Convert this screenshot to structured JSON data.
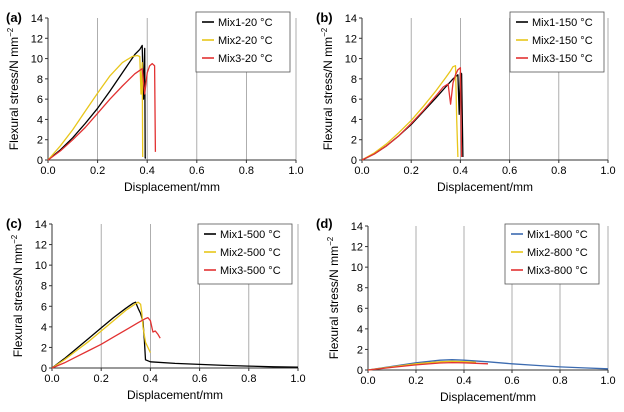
{
  "figure": {
    "colors": {
      "black": "#000000",
      "yellow": "#e8c61a",
      "red": "#e23232",
      "blue": "#3c6bb0",
      "grid": "#999999"
    }
  },
  "chart_data": [
    {
      "type": "line",
      "panel_label": "(a)",
      "xlabel": "Displacement/mm",
      "ylabel": "Flexural stress/N mm",
      "ylabel_sup": "−2",
      "xlim": [
        0,
        1.0
      ],
      "ylim": [
        0,
        14
      ],
      "xticks": [
        "0.0",
        "0.2",
        "0.4",
        "0.6",
        "0.8",
        "1.0"
      ],
      "yticks": [
        "0",
        "2",
        "4",
        "6",
        "8",
        "10",
        "12",
        "14"
      ],
      "grid": "vertical",
      "legend": "top-right",
      "series": [
        {
          "name": "Mix1-20 °C",
          "color": "#000000",
          "x": [
            0,
            0.05,
            0.1,
            0.15,
            0.2,
            0.25,
            0.3,
            0.35,
            0.37,
            0.38,
            0.385,
            0.39,
            0.392,
            0.395
          ],
          "y": [
            0,
            1.0,
            2.2,
            3.6,
            5.1,
            6.8,
            8.6,
            10.4,
            10.9,
            11.3,
            6.0,
            11.0,
            0.2,
            0.2
          ]
        },
        {
          "name": "Mix2-20 °C",
          "color": "#e8c61a",
          "x": [
            0,
            0.05,
            0.1,
            0.15,
            0.2,
            0.25,
            0.3,
            0.34,
            0.36,
            0.37,
            0.375,
            0.38,
            0.382
          ],
          "y": [
            0,
            1.4,
            3.0,
            4.8,
            6.6,
            8.3,
            9.6,
            10.2,
            10.3,
            10.2,
            6.5,
            9.6,
            0.3
          ]
        },
        {
          "name": "Mix3-20 °C",
          "color": "#e23232",
          "x": [
            0,
            0.05,
            0.1,
            0.15,
            0.2,
            0.25,
            0.3,
            0.35,
            0.38,
            0.39,
            0.4,
            0.41,
            0.42,
            0.43,
            0.433
          ],
          "y": [
            0,
            0.9,
            2.0,
            3.2,
            4.6,
            6.0,
            7.3,
            8.5,
            9.0,
            6.5,
            8.6,
            9.3,
            9.5,
            9.3,
            0.8
          ]
        }
      ]
    },
    {
      "type": "line",
      "panel_label": "(b)",
      "xlabel": "Displacement/mm",
      "ylabel": "Flexural stress/N mm",
      "ylabel_sup": "−2",
      "xlim": [
        0,
        1.0
      ],
      "ylim": [
        0,
        14
      ],
      "xticks": [
        "0.0",
        "0.2",
        "0.4",
        "0.6",
        "0.8",
        "1.0"
      ],
      "yticks": [
        "0",
        "2",
        "4",
        "6",
        "8",
        "10",
        "12",
        "14"
      ],
      "grid": "vertical",
      "legend": "top-right",
      "series": [
        {
          "name": "Mix1-150 °C",
          "color": "#000000",
          "x": [
            0,
            0.05,
            0.1,
            0.15,
            0.2,
            0.25,
            0.3,
            0.34,
            0.37,
            0.39,
            0.395,
            0.4,
            0.405,
            0.41
          ],
          "y": [
            0,
            0.6,
            1.4,
            2.4,
            3.5,
            4.8,
            6.1,
            7.2,
            8.0,
            8.4,
            4.5,
            8.6,
            8.5,
            0.3
          ]
        },
        {
          "name": "Mix2-150 °C",
          "color": "#e8c61a",
          "x": [
            0,
            0.05,
            0.1,
            0.15,
            0.2,
            0.25,
            0.3,
            0.34,
            0.36,
            0.37,
            0.38,
            0.385,
            0.39
          ],
          "y": [
            0,
            0.7,
            1.6,
            2.7,
            3.9,
            5.3,
            6.8,
            8.1,
            8.8,
            9.2,
            9.3,
            4.0,
            0.3
          ]
        },
        {
          "name": "Mix3-150 °C",
          "color": "#e23232",
          "x": [
            0,
            0.05,
            0.1,
            0.15,
            0.2,
            0.25,
            0.3,
            0.33,
            0.35,
            0.36,
            0.37,
            0.38,
            0.39,
            0.4,
            0.405
          ],
          "y": [
            0,
            0.6,
            1.4,
            2.4,
            3.6,
            4.9,
            6.3,
            7.2,
            7.5,
            5.5,
            7.6,
            8.4,
            8.9,
            9.1,
            0.3
          ]
        }
      ]
    },
    {
      "type": "line",
      "panel_label": "(c)",
      "xlabel": "Displacement/mm",
      "ylabel": "Flexural stress/N mm",
      "ylabel_sup": "−2",
      "xlim": [
        0,
        1.0
      ],
      "ylim": [
        0,
        14
      ],
      "xticks": [
        "0.0",
        "0.2",
        "0.4",
        "0.6",
        "0.8",
        "1.0"
      ],
      "yticks": [
        "0",
        "2",
        "4",
        "6",
        "8",
        "10",
        "12",
        "14"
      ],
      "grid": "vertical",
      "legend": "top-right",
      "series": [
        {
          "name": "Mix1-500 °C",
          "color": "#000000",
          "x": [
            0,
            0.05,
            0.1,
            0.15,
            0.2,
            0.25,
            0.3,
            0.33,
            0.34,
            0.35,
            0.36,
            0.37,
            0.375,
            0.38,
            0.4,
            0.5,
            0.6,
            0.7,
            0.8,
            0.9,
            1.0
          ],
          "y": [
            0,
            0.9,
            1.9,
            2.9,
            3.9,
            4.9,
            5.8,
            6.3,
            6.4,
            5.8,
            5.3,
            4.5,
            2.8,
            0.8,
            0.6,
            0.45,
            0.35,
            0.25,
            0.18,
            0.12,
            0.08
          ]
        },
        {
          "name": "Mix2-500 °C",
          "color": "#e8c61a",
          "x": [
            0,
            0.05,
            0.1,
            0.15,
            0.2,
            0.25,
            0.3,
            0.33,
            0.35,
            0.36,
            0.365,
            0.37,
            0.38,
            0.39,
            0.4
          ],
          "y": [
            0,
            0.8,
            1.7,
            2.6,
            3.6,
            4.6,
            5.6,
            6.1,
            6.4,
            6.2,
            5.4,
            4.0,
            2.5,
            2.0,
            1.5
          ]
        },
        {
          "name": "Mix3-500 °C",
          "color": "#e23232",
          "x": [
            0,
            0.05,
            0.1,
            0.15,
            0.2,
            0.25,
            0.3,
            0.35,
            0.38,
            0.39,
            0.4,
            0.41,
            0.42,
            0.43,
            0.44
          ],
          "y": [
            0,
            0.5,
            1.1,
            1.7,
            2.3,
            3.0,
            3.7,
            4.4,
            4.8,
            4.9,
            4.6,
            3.5,
            3.6,
            3.3,
            2.9
          ]
        }
      ]
    },
    {
      "type": "line",
      "panel_label": "(d)",
      "xlabel": "Displacement/mm",
      "ylabel": "Flexural stress/N mm",
      "ylabel_sup": "−2",
      "xlim": [
        0,
        1.0
      ],
      "ylim": [
        0,
        14
      ],
      "xticks": [
        "0.0",
        "0.2",
        "0.4",
        "0.6",
        "0.8",
        "1.0"
      ],
      "yticks": [
        "0",
        "2",
        "4",
        "6",
        "8",
        "10",
        "12",
        "14"
      ],
      "grid": "vertical",
      "legend": "top-right",
      "series": [
        {
          "name": "Mix1-800 °C",
          "color": "#3c6bb0",
          "x": [
            0,
            0.1,
            0.2,
            0.3,
            0.35,
            0.4,
            0.5,
            0.6,
            0.7,
            0.8,
            0.9,
            1.0
          ],
          "y": [
            0,
            0.35,
            0.7,
            0.95,
            1.0,
            0.95,
            0.8,
            0.6,
            0.45,
            0.3,
            0.2,
            0.12
          ]
        },
        {
          "name": "Mix2-800 °C",
          "color": "#e8c61a",
          "x": [
            0,
            0.1,
            0.2,
            0.3,
            0.35,
            0.4,
            0.45
          ],
          "y": [
            0,
            0.3,
            0.6,
            0.8,
            0.85,
            0.82,
            0.75
          ]
        },
        {
          "name": "Mix3-800 °C",
          "color": "#e23232",
          "x": [
            0,
            0.1,
            0.2,
            0.3,
            0.35,
            0.4,
            0.45,
            0.5
          ],
          "y": [
            0,
            0.25,
            0.5,
            0.68,
            0.72,
            0.7,
            0.65,
            0.6
          ]
        }
      ]
    }
  ]
}
